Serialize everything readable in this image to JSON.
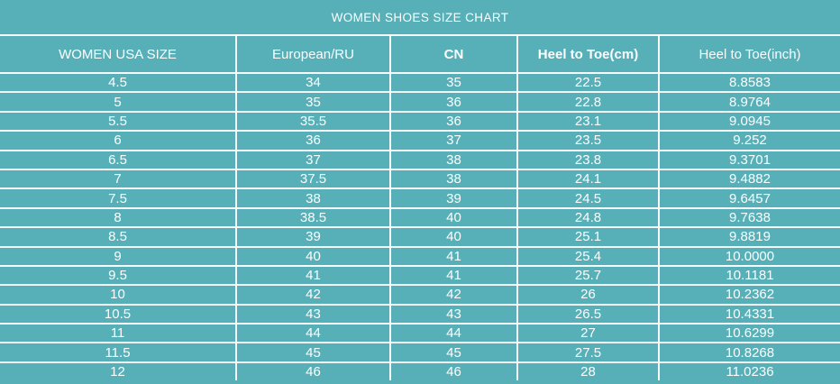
{
  "title": "WOMEN SHOES SIZE CHART",
  "colors": {
    "background": "#57b0b8",
    "grid_line": "#f6fbfb",
    "text": "#fbfefe"
  },
  "chart_data": {
    "type": "table",
    "title": "WOMEN SHOES SIZE CHART",
    "columns": [
      {
        "label": "WOMEN USA SIZE",
        "bold": false
      },
      {
        "label": "European/RU",
        "bold": false
      },
      {
        "label": "CN",
        "bold": true
      },
      {
        "label": "Heel to Toe(cm)",
        "bold": true
      },
      {
        "label": "Heel to Toe(inch)",
        "bold": false
      }
    ],
    "rows": [
      [
        "4.5",
        "34",
        "35",
        "22.5",
        "8.8583"
      ],
      [
        "5",
        "35",
        "36",
        "22.8",
        "8.9764"
      ],
      [
        "5.5",
        "35.5",
        "36",
        "23.1",
        "9.0945"
      ],
      [
        "6",
        "36",
        "37",
        "23.5",
        "9.252"
      ],
      [
        "6.5",
        "37",
        "38",
        "23.8",
        "9.3701"
      ],
      [
        "7",
        "37.5",
        "38",
        "24.1",
        "9.4882"
      ],
      [
        "7.5",
        "38",
        "39",
        "24.5",
        "9.6457"
      ],
      [
        "8",
        "38.5",
        "40",
        "24.8",
        "9.7638"
      ],
      [
        "8.5",
        "39",
        "40",
        "25.1",
        "9.8819"
      ],
      [
        "9",
        "40",
        "41",
        "25.4",
        "10.0000"
      ],
      [
        "9.5",
        "41",
        "41",
        "25.7",
        "10.1181"
      ],
      [
        "10",
        "42",
        "42",
        "26",
        "10.2362"
      ],
      [
        "10.5",
        "43",
        "43",
        "26.5",
        "10.4331"
      ],
      [
        "11",
        "44",
        "44",
        "27",
        "10.6299"
      ],
      [
        "11.5",
        "45",
        "45",
        "27.5",
        "10.8268"
      ],
      [
        "12",
        "46",
        "46",
        "28",
        "11.0236"
      ]
    ]
  }
}
